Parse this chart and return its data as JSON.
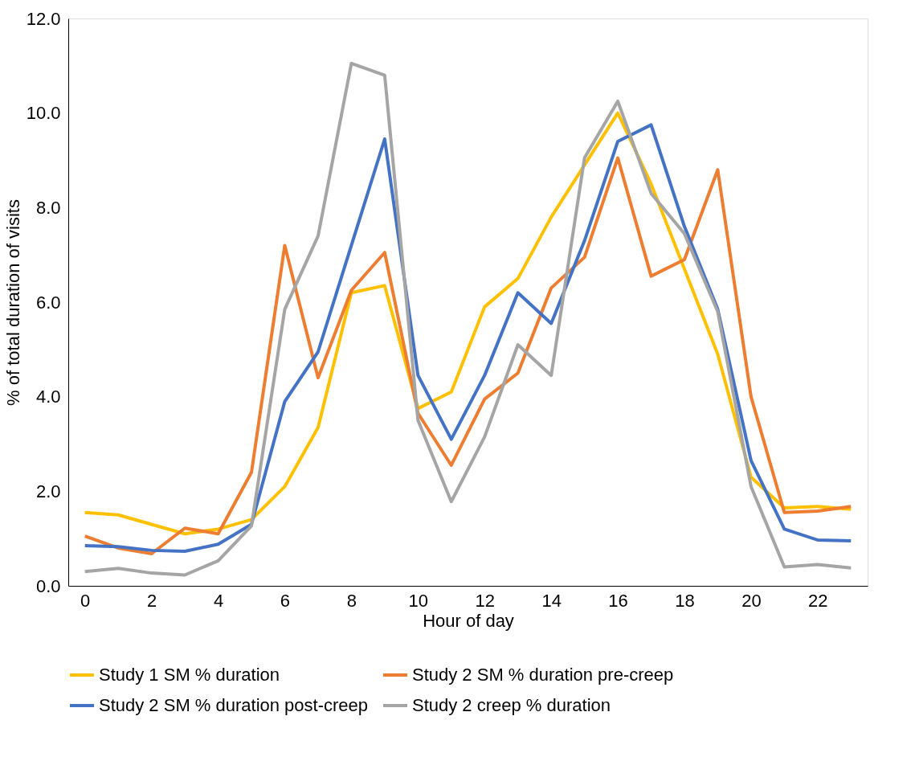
{
  "chart_data": {
    "type": "line",
    "xlabel": "Hour of day",
    "ylabel": "% of total duration of visits",
    "x": [
      0,
      1,
      2,
      3,
      4,
      5,
      6,
      7,
      8,
      9,
      10,
      11,
      12,
      13,
      14,
      15,
      16,
      17,
      18,
      19,
      20,
      21,
      22,
      23
    ],
    "series": [
      {
        "name": "Study 1 SM % duration",
        "color": "#ffc000",
        "values": [
          1.55,
          1.5,
          1.3,
          1.1,
          1.2,
          1.4,
          2.1,
          3.35,
          6.2,
          6.35,
          3.75,
          4.1,
          5.9,
          6.5,
          7.8,
          8.9,
          10.0,
          8.5,
          6.7,
          4.9,
          2.3,
          1.65,
          1.68,
          1.62
        ]
      },
      {
        "name": "Study 2 SM % duration pre-creep",
        "color": "#ed7d31",
        "values": [
          1.05,
          0.8,
          0.68,
          1.22,
          1.1,
          2.4,
          7.2,
          4.4,
          6.25,
          7.05,
          3.65,
          2.55,
          3.95,
          4.5,
          6.3,
          6.95,
          9.05,
          6.55,
          6.9,
          8.8,
          4.0,
          1.55,
          1.58,
          1.68
        ]
      },
      {
        "name": "Study 2 SM % duration post-creep",
        "color": "#4472c4",
        "values": [
          0.85,
          0.83,
          0.75,
          0.73,
          0.88,
          1.3,
          3.9,
          4.95,
          7.2,
          9.45,
          4.45,
          3.1,
          4.45,
          6.2,
          5.55,
          7.3,
          9.4,
          9.75,
          7.6,
          5.85,
          2.65,
          1.2,
          0.97,
          0.95
        ]
      },
      {
        "name": "Study 2 creep % duration",
        "color": "#a5a5a5",
        "values": [
          0.3,
          0.37,
          0.27,
          0.23,
          0.53,
          1.27,
          5.85,
          7.4,
          11.05,
          10.8,
          3.5,
          1.78,
          3.15,
          5.1,
          4.45,
          9.05,
          10.25,
          8.3,
          7.45,
          5.8,
          2.1,
          0.4,
          0.45,
          0.38
        ]
      }
    ],
    "xlim": [
      -0.5,
      23.5
    ],
    "xticks": [
      0,
      2,
      4,
      6,
      8,
      10,
      12,
      14,
      16,
      18,
      20,
      22
    ],
    "ylim": [
      0,
      12
    ],
    "yticks": [
      {
        "value": 0,
        "label": "0.0"
      },
      {
        "value": 2,
        "label": "2.0"
      },
      {
        "value": 4,
        "label": "4.0"
      },
      {
        "value": 6,
        "label": "6.0"
      },
      {
        "value": 8,
        "label": "8.0"
      },
      {
        "value": 10,
        "label": "10.0"
      },
      {
        "value": 12,
        "label": "12.0"
      }
    ],
    "grid": false,
    "legend": "bottom",
    "marker": "none",
    "line_style": "solid"
  }
}
